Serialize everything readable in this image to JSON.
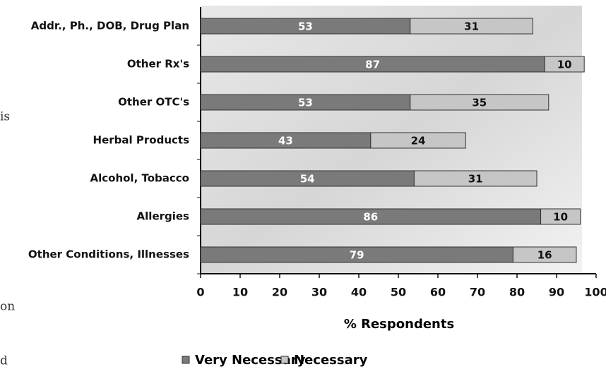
{
  "side_text": [
    "is",
    "on",
    "d"
  ],
  "chart_data": {
    "type": "stacked-barh",
    "xlabel": "% Respondents",
    "categories": [
      "Addr., Ph., DOB, Drug Plan",
      "Other Rx's",
      "Other OTC's",
      "Herbal Products",
      "Alcohol, Tobacco",
      "Allergies",
      "Other Conditions, Illnesses"
    ],
    "series": [
      {
        "name": "Very Necessary",
        "color": "#7a7a7a",
        "values": [
          53,
          87,
          53,
          43,
          54,
          86,
          79
        ]
      },
      {
        "name": "Necessary",
        "color": "#c6c6c6",
        "values": [
          31,
          10,
          35,
          24,
          31,
          10,
          16
        ]
      }
    ],
    "xlim": [
      0,
      100
    ],
    "xticks": [
      0,
      10,
      20,
      30,
      40,
      50,
      60,
      70,
      80,
      90,
      100
    ],
    "legend": "bottom"
  }
}
